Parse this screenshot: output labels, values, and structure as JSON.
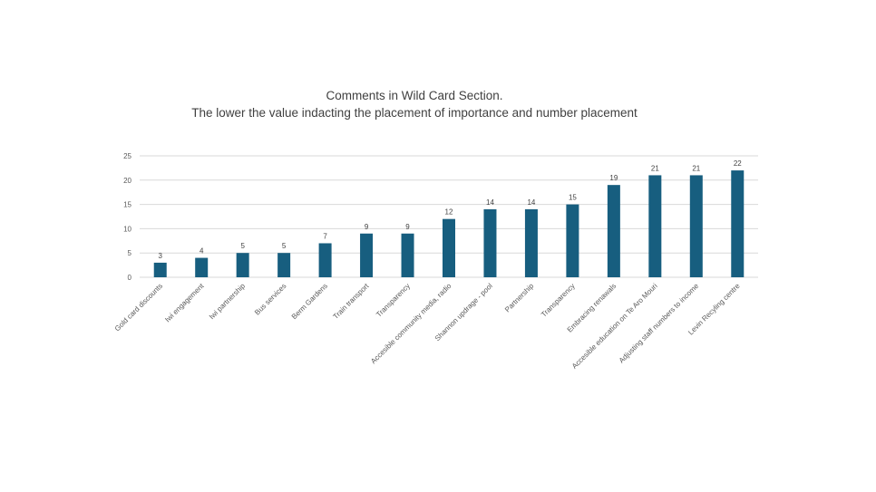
{
  "chart_data": {
    "type": "bar",
    "title": "Comments in Wild Card Section.",
    "subtitle": "The lower the value indacting the placement of importance and number placement",
    "categories": [
      "Gold card discounts",
      "Iwi engagement",
      "Iwi partnership",
      "Bus services",
      "Berm Gardens",
      "Train transport",
      "Transparency",
      "Accesible community media, radio",
      "Shannon updrage - pool",
      "Partnership",
      "Transparency",
      "Embracing renawals",
      "Accesible education on Te Aro Mouri",
      "Adjusting staff numbers to income",
      "Levin Recyling centre"
    ],
    "values": [
      3,
      4,
      5,
      5,
      7,
      9,
      9,
      12,
      14,
      14,
      15,
      19,
      21,
      21,
      22
    ],
    "yticks": [
      "0",
      "5",
      "10",
      "15",
      "20",
      "25"
    ],
    "ylim": [
      0,
      25
    ],
    "grid": true,
    "legend": "none",
    "bar_color": "#175E7F",
    "grid_color": "#d9d9d9"
  }
}
